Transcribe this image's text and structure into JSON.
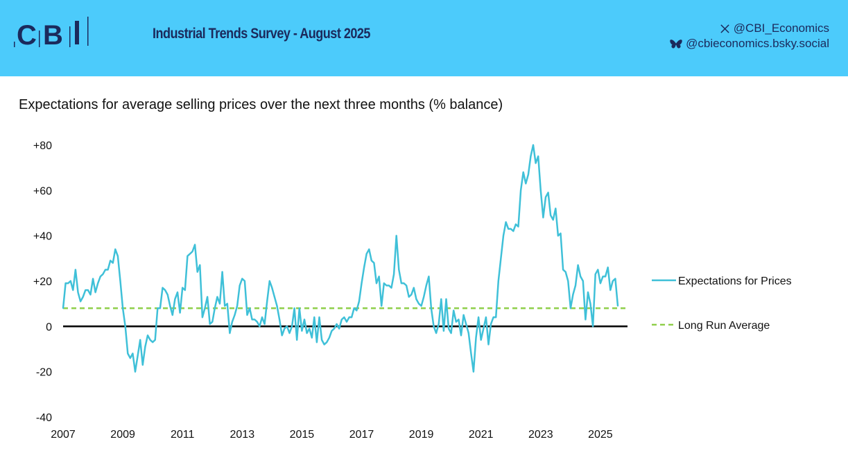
{
  "header": {
    "logo_text": "CBI",
    "title": "Industrial Trends Survey - August 2025",
    "social": [
      {
        "icon": "x-icon",
        "handle": "@CBI_Economics"
      },
      {
        "icon": "bluesky-butterfly-icon",
        "handle": "@cbieconomics.bsky.social"
      }
    ],
    "background_color": "#4ccbfb",
    "text_color": "#1b2a5c"
  },
  "chart_data": {
    "type": "line",
    "title": "Expectations for average selling prices over the next three months (% balance)",
    "xlabel": "",
    "ylabel": "",
    "ylim": [
      -40,
      80
    ],
    "yticks": [
      80,
      60,
      40,
      20,
      0,
      -20,
      -40
    ],
    "ytick_labels": [
      "+80",
      "+60",
      "+40",
      "+20",
      "0",
      "-20",
      "-40"
    ],
    "xlim": [
      2007,
      2026
    ],
    "xticks": [
      2007,
      2009,
      2011,
      2013,
      2015,
      2017,
      2019,
      2021,
      2023,
      2025
    ],
    "xtick_labels": [
      "2007",
      "2009",
      "2011",
      "2013",
      "2015",
      "2017",
      "2019",
      "2021",
      "2023",
      "2025"
    ],
    "grid": false,
    "legend_position": "right",
    "start": "2007-01",
    "frequency": "monthly",
    "series": [
      {
        "name": "Expectations for Prices",
        "color": "#3fc0d8",
        "style": "solid",
        "values": [
          8,
          19,
          19,
          20,
          16,
          25,
          15,
          11,
          13,
          16,
          16,
          14,
          21,
          15,
          19,
          22,
          23,
          25,
          25,
          29,
          28,
          34,
          31,
          20,
          8,
          0,
          -12,
          -14,
          -12,
          -20,
          -13,
          -6,
          -17,
          -9,
          -4,
          -6,
          -7,
          -6,
          8,
          8,
          17,
          16,
          14,
          9,
          5,
          12,
          15,
          6,
          17,
          16,
          31,
          32,
          33,
          36,
          24,
          27,
          4,
          8,
          13,
          1,
          2,
          8,
          13,
          10,
          24,
          9,
          10,
          -3,
          2,
          5,
          9,
          18,
          21,
          20,
          5,
          8,
          3,
          3,
          2,
          0,
          4,
          1,
          11,
          20,
          17,
          13,
          9,
          3,
          -4,
          -1,
          0,
          -3,
          0,
          8,
          -6,
          8,
          -2,
          3,
          -3,
          -1,
          -5,
          4,
          -7,
          4,
          -6,
          -8,
          -7,
          -5,
          -2,
          -1,
          1,
          -1,
          3,
          4,
          2,
          4,
          4,
          8,
          7,
          11,
          19,
          26,
          32,
          34,
          29,
          28,
          19,
          22,
          9,
          19,
          18,
          18,
          17,
          23,
          40,
          25,
          19,
          19,
          18,
          13,
          14,
          17,
          12,
          10,
          9,
          13,
          18,
          22,
          8,
          0,
          -3,
          1,
          12,
          -2,
          12,
          -1,
          -3,
          7,
          2,
          3,
          -4,
          5,
          1,
          -3,
          -12,
          -20,
          -5,
          4,
          -6,
          -1,
          4,
          -8,
          1,
          4,
          4,
          20,
          30,
          40,
          46,
          43,
          43,
          42,
          45,
          44,
          60,
          68,
          63,
          67,
          75,
          80,
          72,
          75,
          60,
          48,
          57,
          59,
          49,
          47,
          52,
          40,
          41,
          25,
          24,
          20,
          8,
          14,
          18,
          27,
          22,
          20,
          3,
          15,
          10,
          0,
          23,
          25,
          19,
          22,
          22,
          26,
          16,
          20,
          21,
          9
        ]
      },
      {
        "name": "Long Run Average",
        "color": "#8fcf4a",
        "style": "dashed",
        "value": 8
      }
    ],
    "zero_line": true
  }
}
